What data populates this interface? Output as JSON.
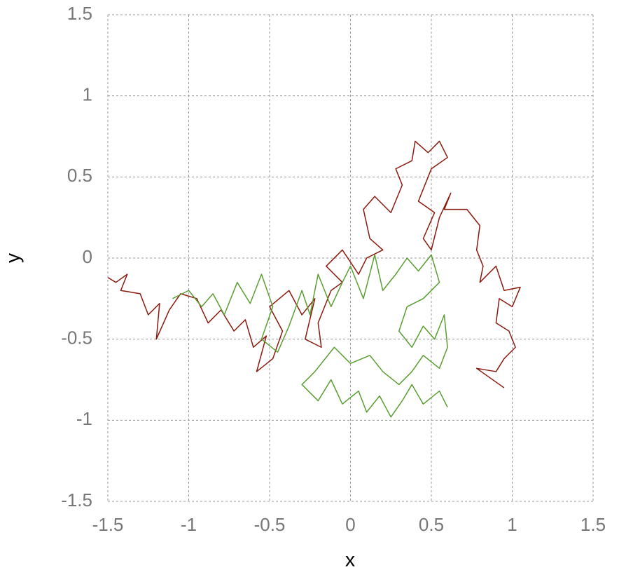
{
  "chart_data": {
    "type": "line",
    "xlabel": "x",
    "ylabel": "y",
    "xlim": [
      -1.5,
      1.5
    ],
    "ylim": [
      -1.5,
      1.5
    ],
    "xticks": [
      -1.5,
      -1,
      -0.5,
      0,
      0.5,
      1,
      1.5
    ],
    "yticks": [
      -1.5,
      -1,
      -0.5,
      0,
      0.5,
      1,
      1.5
    ],
    "grid": true,
    "series": [
      {
        "color": "#8b1a0e",
        "x": [
          -1.5,
          -1.45,
          -1.38,
          -1.42,
          -1.3,
          -1.25,
          -1.18,
          -1.2,
          -1.12,
          -1.05,
          -0.95,
          -0.88,
          -0.8,
          -0.72,
          -0.65,
          -0.6,
          -0.52,
          -0.58,
          -0.48,
          -0.42,
          -0.5,
          -0.38,
          -0.3,
          -0.22,
          -0.28,
          -0.18,
          -0.2,
          -0.12,
          -0.05,
          -0.15,
          -0.05,
          0.05,
          0.1,
          0.2,
          0.12,
          0.08,
          0.15,
          0.25,
          0.32,
          0.28,
          0.38,
          0.4,
          0.48,
          0.55,
          0.6,
          0.5,
          0.42,
          0.52,
          0.45,
          0.5,
          0.55,
          0.62,
          0.58,
          0.72,
          0.8,
          0.78,
          0.82,
          0.8,
          0.9,
          0.95,
          1.05,
          1.0,
          0.92,
          0.9,
          0.98,
          1.02,
          0.95,
          0.9,
          0.78,
          0.95
        ],
        "y": [
          -0.12,
          -0.15,
          -0.1,
          -0.2,
          -0.22,
          -0.35,
          -0.28,
          -0.5,
          -0.32,
          -0.22,
          -0.25,
          -0.4,
          -0.32,
          -0.45,
          -0.38,
          -0.55,
          -0.48,
          -0.7,
          -0.62,
          -0.45,
          -0.3,
          -0.2,
          -0.35,
          -0.25,
          -0.5,
          -0.55,
          -0.4,
          -0.2,
          -0.15,
          -0.05,
          0.05,
          -0.1,
          0.0,
          0.05,
          0.12,
          0.3,
          0.38,
          0.28,
          0.45,
          0.55,
          0.6,
          0.72,
          0.65,
          0.72,
          0.62,
          0.55,
          0.35,
          0.28,
          0.12,
          0.05,
          0.25,
          0.4,
          0.3,
          0.3,
          0.2,
          0.05,
          -0.05,
          -0.15,
          -0.05,
          -0.2,
          -0.18,
          -0.3,
          -0.25,
          -0.4,
          -0.45,
          -0.55,
          -0.62,
          -0.7,
          -0.68,
          -0.8
        ]
      },
      {
        "color": "#5a9e32",
        "x": [
          -1.1,
          -1.0,
          -0.92,
          -0.85,
          -0.78,
          -0.7,
          -0.62,
          -0.55,
          -0.48,
          -0.55,
          -0.45,
          -0.38,
          -0.3,
          -0.25,
          -0.2,
          -0.12,
          -0.05,
          0.0,
          0.08,
          0.15,
          0.2,
          0.28,
          0.35,
          0.42,
          0.5,
          0.55,
          0.45,
          0.35,
          0.3,
          0.38,
          0.45,
          0.52,
          0.58,
          0.6,
          0.55,
          0.45,
          0.38,
          0.3,
          0.2,
          0.12,
          0.0,
          -0.1,
          -0.22,
          -0.3,
          -0.2,
          -0.12,
          -0.05,
          0.05,
          0.1,
          0.18,
          0.25,
          0.32,
          0.38,
          0.45,
          0.55,
          0.6
        ],
        "y": [
          -0.25,
          -0.2,
          -0.3,
          -0.22,
          -0.35,
          -0.15,
          -0.28,
          -0.1,
          -0.3,
          -0.5,
          -0.58,
          -0.42,
          -0.2,
          -0.35,
          -0.1,
          -0.3,
          -0.15,
          -0.05,
          -0.25,
          0.02,
          -0.2,
          -0.1,
          0.0,
          -0.08,
          0.02,
          -0.15,
          -0.25,
          -0.3,
          -0.45,
          -0.55,
          -0.42,
          -0.5,
          -0.35,
          -0.55,
          -0.68,
          -0.6,
          -0.7,
          -0.78,
          -0.7,
          -0.6,
          -0.65,
          -0.55,
          -0.7,
          -0.78,
          -0.88,
          -0.75,
          -0.9,
          -0.82,
          -0.95,
          -0.85,
          -0.98,
          -0.88,
          -0.78,
          -0.9,
          -0.82,
          -0.92
        ]
      }
    ]
  }
}
